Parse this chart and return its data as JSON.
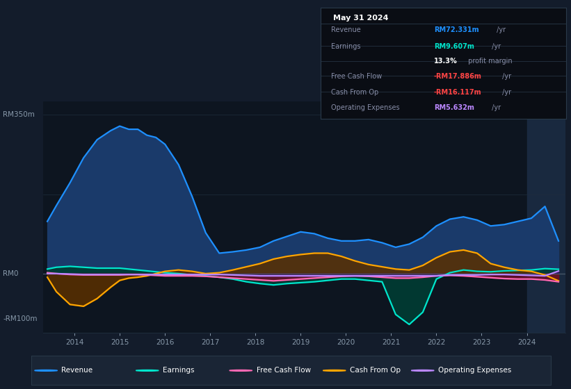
{
  "bg_color": "#131c2b",
  "plot_bg_color": "#0d1520",
  "grid_color": "#1e2d3d",
  "zero_line_color": "#4a5a6a",
  "ylim": [
    -130,
    380
  ],
  "xlim": [
    2013.3,
    2024.85
  ],
  "xticks": [
    2014,
    2015,
    2016,
    2017,
    2018,
    2019,
    2020,
    2021,
    2022,
    2023,
    2024
  ],
  "revenue_color": "#1e90ff",
  "revenue_fill": "#1a3a6a",
  "earnings_color": "#00e5cc",
  "earnings_fill": "#003d33",
  "fcf_color": "#ff69b4",
  "fcf_fill": "#6b0f2a",
  "cashop_color": "#ffa500",
  "cashop_fill": "#5a3000",
  "opex_color": "#bb88ff",
  "opex_fill": "#3a1060",
  "legend_bg": "#1a2535",
  "legend_border": "#2a3a4a",
  "info_title": "May 31 2024",
  "info_rows": [
    {
      "label": "Revenue",
      "value": "RM72.331m",
      "suffix": " /yr",
      "value_color": "#1e90ff",
      "has_separator": true
    },
    {
      "label": "Earnings",
      "value": "RM9.607m",
      "suffix": " /yr",
      "value_color": "#00e5cc",
      "has_separator": false
    },
    {
      "label": "",
      "value": "13.3%",
      "suffix": " profit margin",
      "value_color": "#ffffff",
      "bold": true,
      "has_separator": true
    },
    {
      "label": "Free Cash Flow",
      "value": "-RM17.886m",
      "suffix": " /yr",
      "value_color": "#ff4444",
      "has_separator": true
    },
    {
      "label": "Cash From Op",
      "value": "-RM16.117m",
      "suffix": " /yr",
      "value_color": "#ff4444",
      "has_separator": true
    },
    {
      "label": "Operating Expenses",
      "value": "RM5.632m",
      "suffix": " /yr",
      "value_color": "#bb88ff",
      "has_separator": false
    }
  ],
  "revenue_x": [
    2013.4,
    2013.6,
    2013.9,
    2014.2,
    2014.5,
    2014.8,
    2015.0,
    2015.2,
    2015.4,
    2015.6,
    2015.8,
    2016.0,
    2016.3,
    2016.6,
    2016.9,
    2017.2,
    2017.5,
    2017.8,
    2018.1,
    2018.4,
    2018.7,
    2019.0,
    2019.3,
    2019.6,
    2019.9,
    2020.2,
    2020.5,
    2020.8,
    2021.1,
    2021.4,
    2021.7,
    2022.0,
    2022.3,
    2022.6,
    2022.9,
    2023.2,
    2023.5,
    2023.8,
    2024.1,
    2024.4,
    2024.7
  ],
  "revenue_y": [
    115,
    150,
    200,
    255,
    295,
    315,
    325,
    318,
    318,
    305,
    300,
    285,
    240,
    170,
    90,
    45,
    48,
    52,
    58,
    72,
    82,
    92,
    88,
    78,
    72,
    72,
    75,
    68,
    58,
    65,
    80,
    105,
    120,
    125,
    118,
    105,
    108,
    115,
    122,
    148,
    72
  ],
  "earnings_x": [
    2013.4,
    2013.6,
    2013.9,
    2014.2,
    2014.5,
    2014.8,
    2015.0,
    2015.2,
    2015.4,
    2015.6,
    2015.8,
    2016.0,
    2016.3,
    2016.6,
    2016.9,
    2017.2,
    2017.5,
    2017.8,
    2018.1,
    2018.4,
    2018.7,
    2019.0,
    2019.3,
    2019.6,
    2019.9,
    2020.2,
    2020.5,
    2020.8,
    2021.1,
    2021.4,
    2021.7,
    2022.0,
    2022.3,
    2022.6,
    2022.9,
    2023.2,
    2023.5,
    2023.8,
    2024.1,
    2024.4,
    2024.7
  ],
  "earnings_y": [
    10,
    14,
    16,
    14,
    12,
    12,
    12,
    10,
    8,
    6,
    4,
    2,
    0,
    -3,
    -5,
    -8,
    -12,
    -18,
    -22,
    -25,
    -22,
    -20,
    -18,
    -15,
    -12,
    -12,
    -15,
    -18,
    -90,
    -112,
    -85,
    -12,
    2,
    8,
    5,
    4,
    6,
    7,
    8,
    11,
    9.6
  ],
  "cashop_x": [
    2013.4,
    2013.6,
    2013.9,
    2014.2,
    2014.5,
    2014.8,
    2015.0,
    2015.2,
    2015.4,
    2015.6,
    2015.8,
    2016.0,
    2016.3,
    2016.6,
    2016.9,
    2017.2,
    2017.5,
    2017.8,
    2018.1,
    2018.4,
    2018.7,
    2019.0,
    2019.3,
    2019.6,
    2019.9,
    2020.2,
    2020.5,
    2020.8,
    2021.1,
    2021.4,
    2021.7,
    2022.0,
    2022.3,
    2022.6,
    2022.9,
    2023.2,
    2023.5,
    2023.8,
    2024.1,
    2024.4,
    2024.7
  ],
  "cashop_y": [
    -8,
    -40,
    -68,
    -72,
    -55,
    -30,
    -15,
    -10,
    -8,
    -5,
    0,
    5,
    8,
    5,
    0,
    2,
    8,
    15,
    22,
    32,
    38,
    42,
    45,
    45,
    38,
    28,
    20,
    15,
    10,
    8,
    18,
    35,
    48,
    52,
    45,
    22,
    14,
    8,
    5,
    -3,
    -16
  ],
  "fcf_x": [
    2013.4,
    2013.6,
    2013.9,
    2014.2,
    2014.5,
    2014.8,
    2015.0,
    2015.2,
    2015.4,
    2015.6,
    2015.8,
    2016.0,
    2016.3,
    2016.6,
    2016.9,
    2017.2,
    2017.5,
    2017.8,
    2018.1,
    2018.4,
    2018.7,
    2019.0,
    2019.3,
    2019.6,
    2019.9,
    2020.2,
    2020.5,
    2020.8,
    2021.1,
    2021.4,
    2021.7,
    2022.0,
    2022.3,
    2022.6,
    2022.9,
    2023.2,
    2023.5,
    2023.8,
    2024.1,
    2024.4,
    2024.7
  ],
  "fcf_y": [
    2,
    0,
    -2,
    -3,
    -3,
    -3,
    -3,
    -2,
    -2,
    -3,
    -4,
    -5,
    -5,
    -5,
    -6,
    -8,
    -10,
    -12,
    -14,
    -16,
    -14,
    -12,
    -10,
    -8,
    -6,
    -5,
    -6,
    -8,
    -10,
    -10,
    -8,
    -5,
    -4,
    -5,
    -7,
    -9,
    -11,
    -12,
    -12,
    -14,
    -18
  ],
  "opex_x": [
    2013.4,
    2013.6,
    2013.9,
    2014.2,
    2014.5,
    2014.8,
    2015.0,
    2015.2,
    2015.4,
    2015.6,
    2015.8,
    2016.0,
    2016.3,
    2016.6,
    2016.9,
    2017.2,
    2017.5,
    2017.8,
    2018.1,
    2018.4,
    2018.7,
    2019.0,
    2019.3,
    2019.6,
    2019.9,
    2020.2,
    2020.5,
    2020.8,
    2021.1,
    2021.4,
    2021.7,
    2022.0,
    2022.3,
    2022.6,
    2022.9,
    2023.2,
    2023.5,
    2023.8,
    2024.1,
    2024.4,
    2024.7
  ],
  "opex_y": [
    0,
    0,
    -1,
    -2,
    -2,
    -2,
    -2,
    -2,
    -2,
    -2,
    -2,
    -2,
    -2,
    -2,
    -2,
    -2,
    -3,
    -4,
    -5,
    -5,
    -5,
    -5,
    -5,
    -5,
    -5,
    -5,
    -5,
    -5,
    -5,
    -5,
    -5,
    -5,
    -3,
    -3,
    -3,
    -2,
    -2,
    -3,
    -4,
    -5,
    5.6
  ],
  "highlight_x_start": 2024.0,
  "highlight_x_end": 2024.85,
  "legend_items": [
    {
      "label": "Revenue",
      "color": "#1e90ff"
    },
    {
      "label": "Earnings",
      "color": "#00e5cc"
    },
    {
      "label": "Free Cash Flow",
      "color": "#ff69b4"
    },
    {
      "label": "Cash From Op",
      "color": "#ffa500"
    },
    {
      "label": "Operating Expenses",
      "color": "#bb88ff"
    }
  ]
}
